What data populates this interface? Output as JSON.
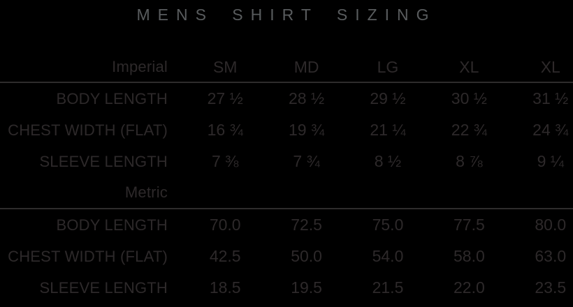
{
  "title": "MENS SHIRT SIZING",
  "colors": {
    "background": "#000000",
    "title_text": "#595c5e",
    "table_text": "#2d292a",
    "divider": "#2e2c2c"
  },
  "table": {
    "imperial_header": {
      "label": "Imperial",
      "columns": [
        "SM",
        "MD",
        "LG",
        "XL",
        "XL"
      ]
    },
    "imperial_rows": [
      {
        "label": "BODY LENGTH",
        "values": [
          "27 ½",
          "28 ½",
          "29 ½",
          "30 ½",
          "31 ½"
        ]
      },
      {
        "label": "CHEST WIDTH (FLAT)",
        "values": [
          "16 ¾",
          "19 ¾",
          "21 ¼",
          "22 ¾",
          "24 ¾"
        ]
      },
      {
        "label": "SLEEVE LENGTH",
        "values": [
          "7 ⅜",
          "7 ¾",
          "8 ½",
          "8 ⅞",
          "9 ¼"
        ]
      }
    ],
    "metric_header": {
      "label": "Metric"
    },
    "metric_rows": [
      {
        "label": "BODY LENGTH",
        "values": [
          "70.0",
          "72.5",
          "75.0",
          "77.5",
          "80.0"
        ]
      },
      {
        "label": "CHEST WIDTH (FLAT)",
        "values": [
          "42.5",
          "50.0",
          "54.0",
          "58.0",
          "63.0"
        ]
      },
      {
        "label": "SLEEVE LENGTH",
        "values": [
          "18.5",
          "19.5",
          "21.5",
          "22.0",
          "23.5"
        ]
      }
    ]
  }
}
